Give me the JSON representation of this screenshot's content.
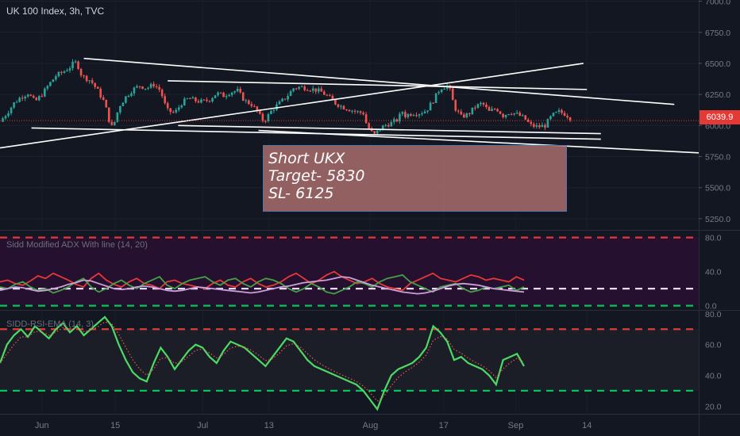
{
  "header": {
    "title": "UK 100 Index, 3h, TVC",
    "adx_label": "Sidd Modified ADX With line  (14, 20)",
    "rsi_label": "SIDD-RSI-EMA (14, 3)"
  },
  "note": {
    "line1": "Short UKX",
    "line2": "Target- 5830",
    "line3": "SL- 6125"
  },
  "colors": {
    "background": "#131722",
    "bull": "#26a69a",
    "bear": "#ef5350",
    "trendline": "#ffffff",
    "adx_red": "#e53935",
    "adx_green": "#43a047",
    "adx_lavender": "#c8a0d8",
    "rsi_green": "#4cd964",
    "level_red": "#e53935",
    "level_green": "#00c853",
    "level_white": "#e8d8f0"
  },
  "chart_data": [
    {
      "type": "candlestick",
      "title": "UK 100 Index, 3h, TVC",
      "last_price": "6039.9",
      "y_ticks": [
        "7000.0",
        "6750.0",
        "6500.0",
        "6250.0",
        "6000.0",
        "5750.0",
        "5500.0",
        "5250.0"
      ],
      "ylim": [
        5160,
        7010
      ],
      "x_ticks": [
        "Jun",
        "15",
        "Jul",
        "13",
        "Aug",
        "17",
        "Sep",
        "14"
      ],
      "x_tick_positions": [
        0.06,
        0.165,
        0.29,
        0.385,
        0.53,
        0.635,
        0.738,
        0.84
      ],
      "close_path": [
        [
          0.0,
          6030
        ],
        [
          0.01,
          6100
        ],
        [
          0.02,
          6180
        ],
        [
          0.03,
          6230
        ],
        [
          0.04,
          6260
        ],
        [
          0.05,
          6190
        ],
        [
          0.06,
          6250
        ],
        [
          0.07,
          6330
        ],
        [
          0.08,
          6400
        ],
        [
          0.09,
          6430
        ],
        [
          0.1,
          6470
        ],
        [
          0.105,
          6500
        ],
        [
          0.11,
          6510
        ],
        [
          0.115,
          6420
        ],
        [
          0.12,
          6390
        ],
        [
          0.13,
          6360
        ],
        [
          0.14,
          6280
        ],
        [
          0.15,
          6180
        ],
        [
          0.155,
          6060
        ],
        [
          0.16,
          5990
        ],
        [
          0.165,
          6040
        ],
        [
          0.17,
          6150
        ],
        [
          0.18,
          6230
        ],
        [
          0.19,
          6290
        ],
        [
          0.2,
          6320
        ],
        [
          0.21,
          6300
        ],
        [
          0.22,
          6330
        ],
        [
          0.23,
          6280
        ],
        [
          0.235,
          6180
        ],
        [
          0.24,
          6120
        ],
        [
          0.25,
          6100
        ],
        [
          0.26,
          6180
        ],
        [
          0.27,
          6220
        ],
        [
          0.28,
          6200
        ],
        [
          0.29,
          6190
        ],
        [
          0.3,
          6210
        ],
        [
          0.31,
          6260
        ],
        [
          0.32,
          6240
        ],
        [
          0.33,
          6270
        ],
        [
          0.34,
          6280
        ],
        [
          0.35,
          6200
        ],
        [
          0.36,
          6170
        ],
        [
          0.37,
          6100
        ],
        [
          0.375,
          6040
        ],
        [
          0.38,
          6050
        ],
        [
          0.39,
          6130
        ],
        [
          0.4,
          6180
        ],
        [
          0.41,
          6230
        ],
        [
          0.42,
          6300
        ],
        [
          0.43,
          6310
        ],
        [
          0.44,
          6300
        ],
        [
          0.45,
          6290
        ],
        [
          0.46,
          6270
        ],
        [
          0.47,
          6230
        ],
        [
          0.48,
          6180
        ],
        [
          0.49,
          6150
        ],
        [
          0.5,
          6130
        ],
        [
          0.51,
          6110
        ],
        [
          0.52,
          6100
        ],
        [
          0.525,
          6000
        ],
        [
          0.53,
          5960
        ],
        [
          0.535,
          5920
        ],
        [
          0.54,
          5950
        ],
        [
          0.55,
          6000
        ],
        [
          0.56,
          6020
        ],
        [
          0.57,
          6050
        ],
        [
          0.575,
          6120
        ],
        [
          0.58,
          6080
        ],
        [
          0.59,
          6100
        ],
        [
          0.6,
          6100
        ],
        [
          0.61,
          6120
        ],
        [
          0.62,
          6200
        ],
        [
          0.63,
          6300
        ],
        [
          0.64,
          6320
        ],
        [
          0.645,
          6270
        ],
        [
          0.65,
          6150
        ],
        [
          0.66,
          6070
        ],
        [
          0.67,
          6090
        ],
        [
          0.68,
          6150
        ],
        [
          0.69,
          6180
        ],
        [
          0.7,
          6110
        ],
        [
          0.71,
          6140
        ],
        [
          0.72,
          6080
        ],
        [
          0.73,
          6110
        ],
        [
          0.74,
          6090
        ],
        [
          0.75,
          6060
        ],
        [
          0.76,
          6000
        ],
        [
          0.77,
          5990
        ],
        [
          0.78,
          6000
        ],
        [
          0.79,
          6080
        ],
        [
          0.8,
          6110
        ],
        [
          0.81,
          6090
        ],
        [
          0.82,
          6040
        ]
      ],
      "trendlines": [
        [
          [
            0.12,
            6540
          ],
          [
            0.965,
            6170
          ]
        ],
        [
          [
            0.045,
            5980
          ],
          [
            0.86,
            5890
          ]
        ],
        [
          [
            0.0,
            5820
          ],
          [
            0.835,
            6500
          ]
        ],
        [
          [
            0.24,
            6360
          ],
          [
            0.84,
            6290
          ]
        ],
        [
          [
            0.255,
            6000
          ],
          [
            0.86,
            5935
          ]
        ],
        [
          [
            0.37,
            5960
          ],
          [
            1.0,
            5780
          ]
        ]
      ],
      "price_line": 6039.9
    },
    {
      "type": "line",
      "title": "Sidd Modified ADX With line  (14, 20)",
      "y_ticks": [
        "80.0",
        "40.0",
        "0.0"
      ],
      "ylim": [
        -5,
        88
      ],
      "levels": [
        80,
        20,
        0
      ],
      "series": [
        {
          "color": "adx_red",
          "values": [
            28,
            30,
            26,
            24,
            29,
            35,
            32,
            38,
            34,
            30,
            25,
            22,
            32,
            38,
            30,
            25,
            22,
            28,
            32,
            26,
            24,
            20,
            28,
            30,
            26,
            24,
            22,
            20,
            26,
            30,
            24,
            22,
            28,
            32,
            26,
            22,
            24,
            28,
            34,
            38,
            32,
            26,
            30,
            36,
            40,
            34,
            30,
            26,
            28,
            32,
            26,
            22,
            20,
            18,
            26,
            30,
            34,
            38,
            32,
            30,
            28,
            32,
            36,
            34,
            30,
            32,
            30,
            28,
            34,
            30
          ]
        },
        {
          "color": "adx_green",
          "values": [
            22,
            20,
            25,
            28,
            22,
            18,
            20,
            15,
            18,
            22,
            28,
            32,
            22,
            16,
            20,
            26,
            30,
            24,
            20,
            26,
            30,
            34,
            24,
            20,
            26,
            30,
            32,
            34,
            28,
            24,
            30,
            32,
            26,
            22,
            28,
            32,
            30,
            26,
            20,
            16,
            20,
            26,
            22,
            16,
            14,
            18,
            22,
            28,
            26,
            22,
            28,
            32,
            34,
            36,
            28,
            24,
            20,
            16,
            22,
            24,
            26,
            20,
            16,
            18,
            22,
            20,
            22,
            24,
            18,
            22
          ]
        },
        {
          "color": "adx_lavender",
          "values": [
            18,
            20,
            22,
            21,
            19,
            17,
            18,
            20,
            22,
            25,
            27,
            30,
            29,
            26,
            23,
            20,
            19,
            20,
            22,
            23,
            22,
            20,
            18,
            17,
            18,
            20,
            22,
            21,
            20,
            19,
            18,
            17,
            16,
            15,
            16,
            18,
            20,
            22,
            23,
            25,
            27,
            28,
            29,
            30,
            32,
            34,
            33,
            30,
            27,
            24,
            22,
            20,
            18,
            16,
            15,
            14,
            15,
            17,
            20,
            23,
            25,
            26,
            25,
            24,
            22,
            20,
            19,
            18,
            17,
            16
          ]
        }
      ]
    },
    {
      "type": "line",
      "title": "SIDD-RSI-EMA (14, 3)",
      "y_ticks": [
        "80.0",
        "60.0",
        "40.0",
        "20.0"
      ],
      "ylim": [
        15,
        82
      ],
      "levels": [
        70,
        30
      ],
      "series": [
        {
          "color": "rsi_green",
          "values": [
            48,
            60,
            66,
            70,
            65,
            72,
            68,
            64,
            70,
            74,
            68,
            72,
            66,
            70,
            74,
            78,
            72,
            60,
            50,
            42,
            38,
            36,
            48,
            58,
            52,
            44,
            50,
            56,
            60,
            58,
            52,
            48,
            56,
            62,
            60,
            58,
            54,
            50,
            46,
            52,
            58,
            64,
            62,
            56,
            50,
            46,
            44,
            42,
            40,
            38,
            36,
            34,
            30,
            24,
            18,
            30,
            40,
            44,
            46,
            48,
            52,
            58,
            72,
            68,
            62,
            50,
            52,
            48,
            46,
            44,
            40,
            34,
            50,
            52,
            54,
            46
          ]
        }
      ]
    }
  ]
}
